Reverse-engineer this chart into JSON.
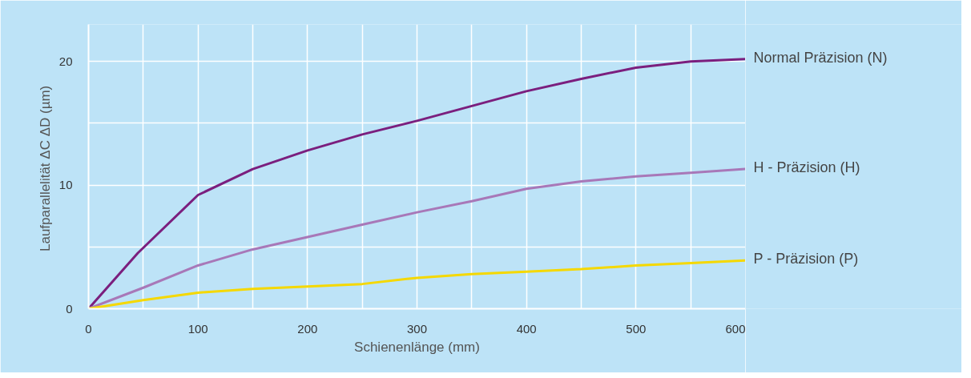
{
  "chart_data": {
    "type": "line",
    "xlabel": "Schienenlänge (mm)",
    "ylabel": "Laufparallelität ΔC  ΔD (µm)",
    "x": [
      0,
      45,
      100,
      150,
      200,
      250,
      300,
      350,
      400,
      450,
      500,
      550,
      600
    ],
    "series": [
      {
        "name": "Normal Präzision (N)",
        "color": "#7b1f7e",
        "values": [
          0,
          4.5,
          9.2,
          11.3,
          12.8,
          14.1,
          15.2,
          16.4,
          17.6,
          18.6,
          19.5,
          20.0,
          20.2
        ]
      },
      {
        "name": "H - Präzision (H)",
        "color": "#a878b8",
        "x": [
          0,
          50,
          100,
          150,
          200,
          250,
          300,
          350,
          400,
          450,
          500,
          550,
          600
        ],
        "values": [
          0,
          1.7,
          3.5,
          4.8,
          5.8,
          6.8,
          7.8,
          8.7,
          9.7,
          10.3,
          10.7,
          11.0,
          11.3
        ]
      },
      {
        "name": "P - Präzision (P)",
        "color": "#f5d800",
        "x": [
          0,
          50,
          100,
          150,
          200,
          250,
          300,
          350,
          400,
          450,
          500,
          550,
          600
        ],
        "values": [
          0,
          0.7,
          1.3,
          1.6,
          1.8,
          2.0,
          2.5,
          2.8,
          3.0,
          3.2,
          3.5,
          3.7,
          3.9
        ]
      }
    ],
    "xlim": [
      0,
      600
    ],
    "ylim": [
      0,
      23
    ],
    "xticks": [
      0,
      {
        "value": 50,
        "label": null
      },
      100,
      {
        "value": 150,
        "label": null
      },
      200,
      {
        "value": 250,
        "label": null
      },
      300,
      {
        "value": 350,
        "label": null
      },
      400,
      {
        "value": 450,
        "label": null
      },
      500,
      {
        "value": 550,
        "label": null
      },
      600
    ],
    "yticks": [
      0,
      {
        "value": 5,
        "label": null
      },
      10,
      {
        "value": 15,
        "label": null
      },
      20
    ],
    "grid": true,
    "legend": false,
    "marker": "none",
    "line_style": "solid"
  }
}
